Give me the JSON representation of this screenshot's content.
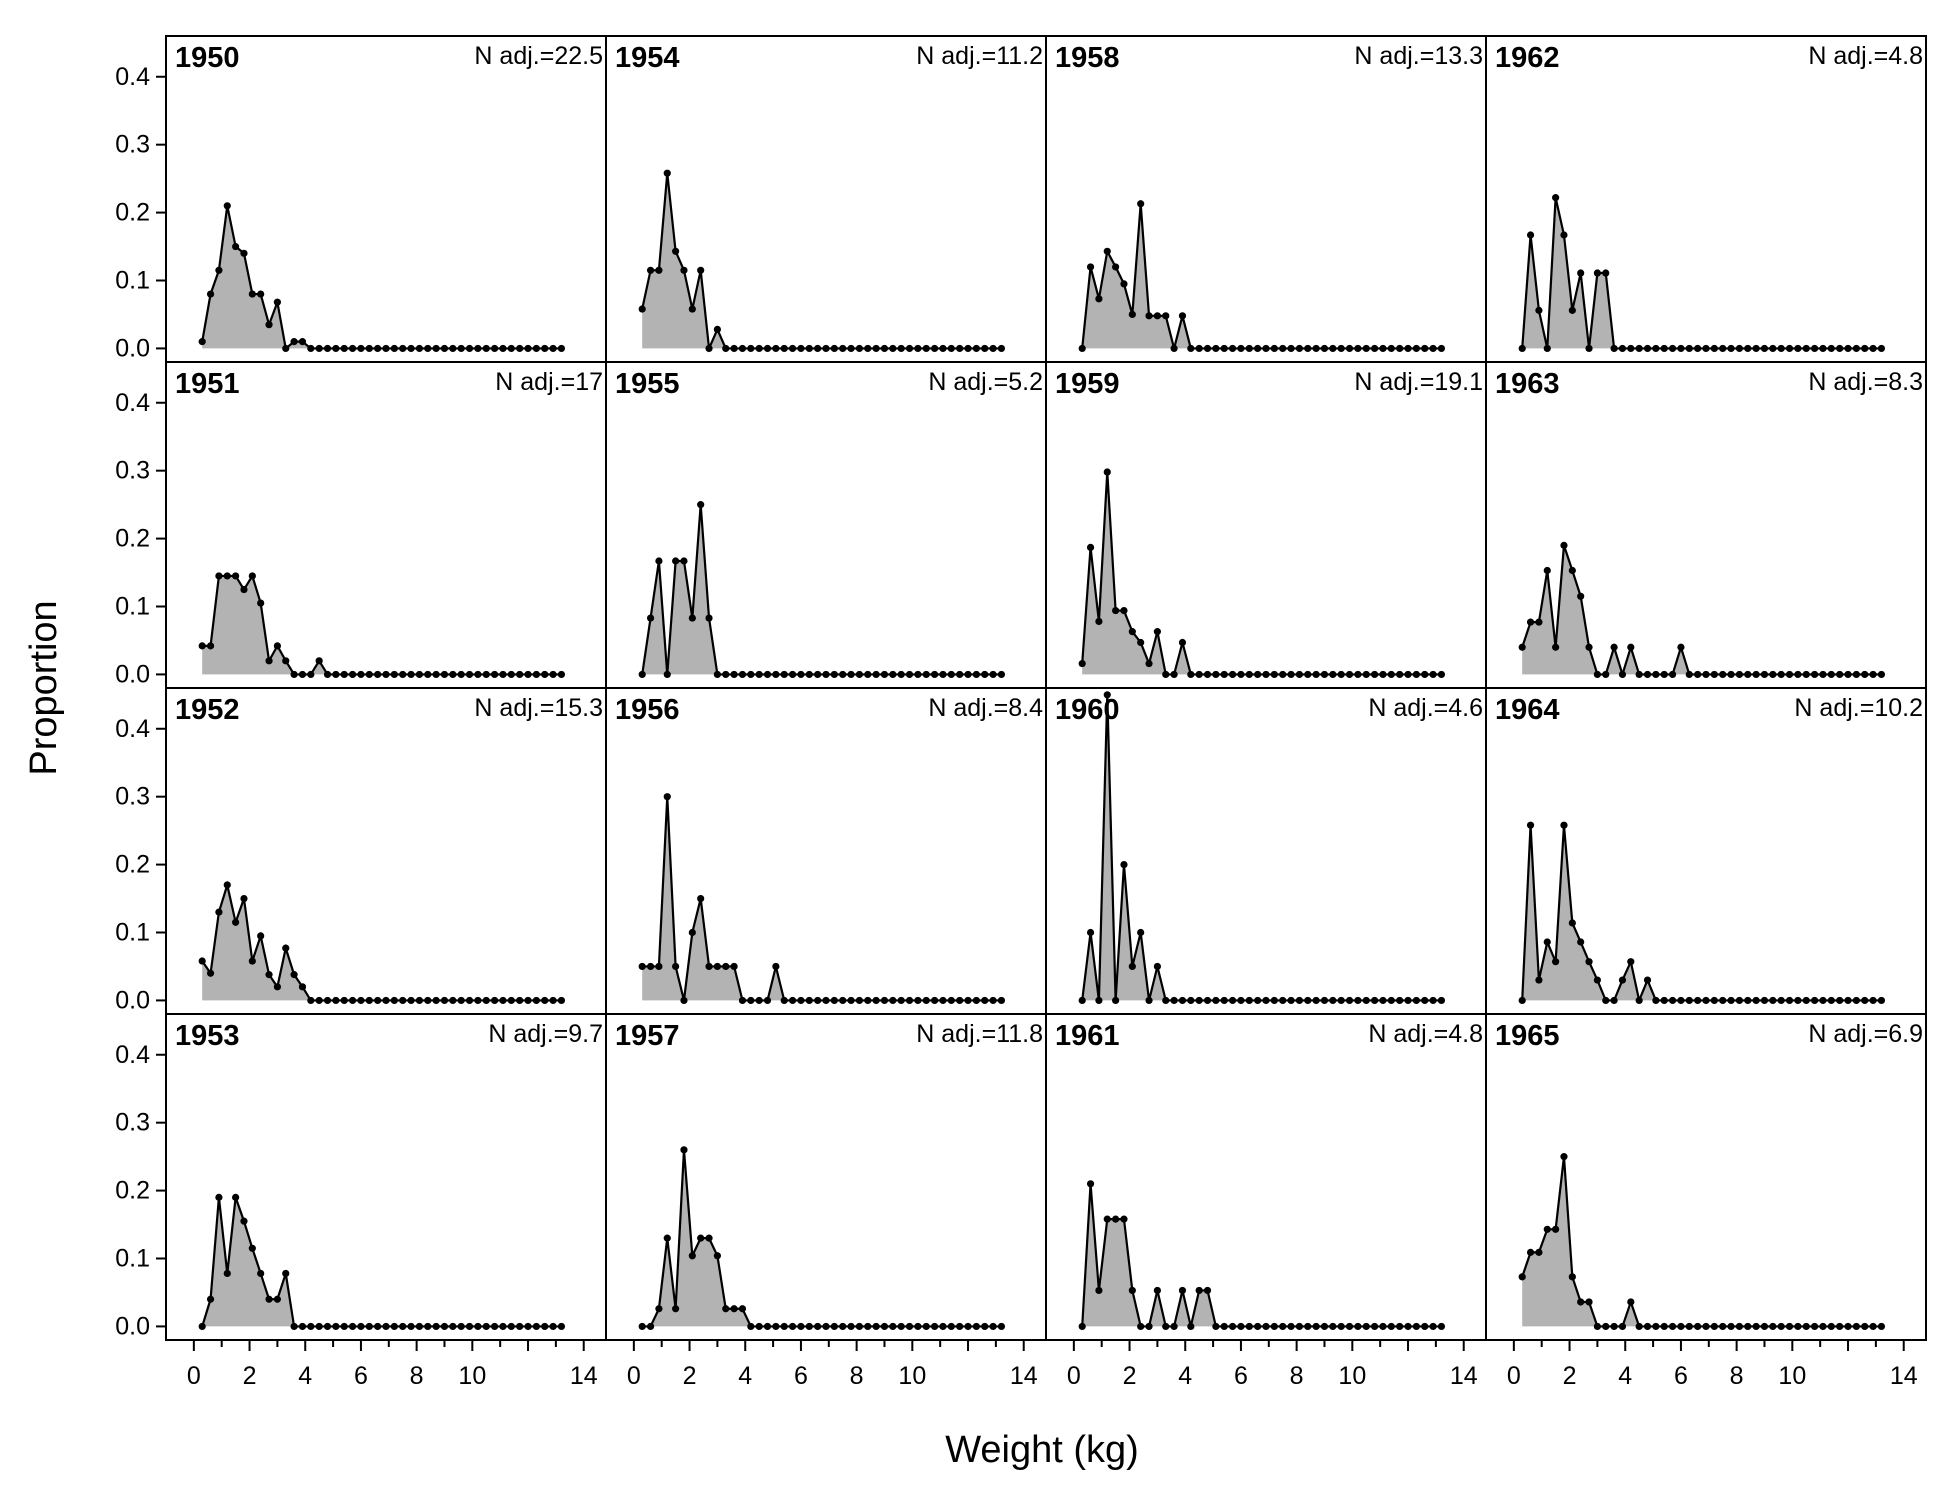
{
  "chart_data": {
    "type": "area",
    "xlabel": "Weight (kg)",
    "ylabel": "Proportion",
    "x_tick_labels": [
      "0",
      "2",
      "4",
      "6",
      "8",
      "10",
      "14"
    ],
    "x_tick_values": [
      0,
      2,
      4,
      6,
      8,
      10,
      14
    ],
    "y_tick_labels": [
      "0.0",
      "0.1",
      "0.2",
      "0.3",
      "0.4"
    ],
    "y_tick_values": [
      0,
      0.1,
      0.2,
      0.3,
      0.4
    ],
    "xlim": [
      -1,
      14.8
    ],
    "ylim": [
      -0.02,
      0.46
    ],
    "grid": false,
    "fill_color": "#b3b3b3",
    "line_color": "#000000",
    "n_prefix": "N adj.=",
    "panels": [
      {
        "year": "1950",
        "n_adj": "22.5",
        "values": [
          0.01,
          0.08,
          0.115,
          0.21,
          0.15,
          0.14,
          0.08,
          0.08,
          0.035,
          0.068,
          0,
          0.01,
          0.01,
          0,
          0,
          0,
          0,
          0,
          0,
          0,
          0,
          0,
          0,
          0,
          0,
          0,
          0,
          0,
          0,
          0,
          0,
          0,
          0,
          0,
          0,
          0,
          0,
          0,
          0,
          0,
          0,
          0,
          0,
          0
        ]
      },
      {
        "year": "1951",
        "n_adj": "17",
        "values": [
          0.042,
          0.042,
          0.145,
          0.145,
          0.145,
          0.125,
          0.145,
          0.105,
          0.02,
          0.042,
          0.02,
          0,
          0,
          0,
          0.02,
          0,
          0,
          0,
          0,
          0,
          0,
          0,
          0,
          0,
          0,
          0,
          0,
          0,
          0,
          0,
          0,
          0,
          0,
          0,
          0,
          0,
          0,
          0,
          0,
          0,
          0,
          0,
          0,
          0
        ]
      },
      {
        "year": "1952",
        "n_adj": "15.3",
        "values": [
          0.058,
          0.04,
          0.13,
          0.17,
          0.115,
          0.15,
          0.058,
          0.095,
          0.038,
          0.02,
          0.077,
          0.038,
          0.02,
          0,
          0,
          0,
          0,
          0,
          0,
          0,
          0,
          0,
          0,
          0,
          0,
          0,
          0,
          0,
          0,
          0,
          0,
          0,
          0,
          0,
          0,
          0,
          0,
          0,
          0,
          0,
          0,
          0,
          0,
          0
        ]
      },
      {
        "year": "1953",
        "n_adj": "9.7",
        "values": [
          0,
          0.04,
          0.19,
          0.078,
          0.19,
          0.155,
          0.115,
          0.078,
          0.04,
          0.04,
          0.078,
          0,
          0,
          0,
          0,
          0,
          0,
          0,
          0,
          0,
          0,
          0,
          0,
          0,
          0,
          0,
          0,
          0,
          0,
          0,
          0,
          0,
          0,
          0,
          0,
          0,
          0,
          0,
          0,
          0,
          0,
          0,
          0,
          0
        ]
      },
      {
        "year": "1954",
        "n_adj": "11.2",
        "values": [
          0.058,
          0.115,
          0.115,
          0.258,
          0.143,
          0.115,
          0.058,
          0.115,
          0,
          0.028,
          0,
          0,
          0,
          0,
          0,
          0,
          0,
          0,
          0,
          0,
          0,
          0,
          0,
          0,
          0,
          0,
          0,
          0,
          0,
          0,
          0,
          0,
          0,
          0,
          0,
          0,
          0,
          0,
          0,
          0,
          0,
          0,
          0,
          0
        ]
      },
      {
        "year": "1955",
        "n_adj": "5.2",
        "values": [
          0,
          0.083,
          0.167,
          0,
          0.167,
          0.167,
          0.083,
          0.25,
          0.083,
          0,
          0,
          0,
          0,
          0,
          0,
          0,
          0,
          0,
          0,
          0,
          0,
          0,
          0,
          0,
          0,
          0,
          0,
          0,
          0,
          0,
          0,
          0,
          0,
          0,
          0,
          0,
          0,
          0,
          0,
          0,
          0,
          0,
          0,
          0
        ]
      },
      {
        "year": "1956",
        "n_adj": "8.4",
        "values": [
          0.05,
          0.05,
          0.05,
          0.3,
          0.05,
          0,
          0.1,
          0.15,
          0.05,
          0.05,
          0.05,
          0.05,
          0,
          0,
          0,
          0,
          0.05,
          0,
          0,
          0,
          0,
          0,
          0,
          0,
          0,
          0,
          0,
          0,
          0,
          0,
          0,
          0,
          0,
          0,
          0,
          0,
          0,
          0,
          0,
          0,
          0,
          0,
          0,
          0
        ]
      },
      {
        "year": "1957",
        "n_adj": "11.8",
        "values": [
          0,
          0,
          0.026,
          0.13,
          0.026,
          0.26,
          0.104,
          0.13,
          0.13,
          0.104,
          0.026,
          0.026,
          0.026,
          0,
          0,
          0,
          0,
          0,
          0,
          0,
          0,
          0,
          0,
          0,
          0,
          0,
          0,
          0,
          0,
          0,
          0,
          0,
          0,
          0,
          0,
          0,
          0,
          0,
          0,
          0,
          0,
          0,
          0,
          0
        ]
      },
      {
        "year": "1958",
        "n_adj": "13.3",
        "values": [
          0,
          0.12,
          0.073,
          0.143,
          0.12,
          0.095,
          0.05,
          0.213,
          0.048,
          0.048,
          0.048,
          0,
          0.048,
          0,
          0,
          0,
          0,
          0,
          0,
          0,
          0,
          0,
          0,
          0,
          0,
          0,
          0,
          0,
          0,
          0,
          0,
          0,
          0,
          0,
          0,
          0,
          0,
          0,
          0,
          0,
          0,
          0,
          0,
          0
        ]
      },
      {
        "year": "1959",
        "n_adj": "19.1",
        "values": [
          0.016,
          0.187,
          0.078,
          0.298,
          0.094,
          0.094,
          0.063,
          0.047,
          0.016,
          0.063,
          0,
          0,
          0.047,
          0,
          0,
          0,
          0,
          0,
          0,
          0,
          0,
          0,
          0,
          0,
          0,
          0,
          0,
          0,
          0,
          0,
          0,
          0,
          0,
          0,
          0,
          0,
          0,
          0,
          0,
          0,
          0,
          0,
          0,
          0
        ]
      },
      {
        "year": "1960",
        "n_adj": "4.6",
        "values": [
          0,
          0.1,
          0,
          0.45,
          0,
          0.2,
          0.05,
          0.1,
          0,
          0.05,
          0,
          0,
          0,
          0,
          0,
          0,
          0,
          0,
          0,
          0,
          0,
          0,
          0,
          0,
          0,
          0,
          0,
          0,
          0,
          0,
          0,
          0,
          0,
          0,
          0,
          0,
          0,
          0,
          0,
          0,
          0,
          0,
          0,
          0
        ]
      },
      {
        "year": "1961",
        "n_adj": "4.8",
        "values": [
          0,
          0.21,
          0.053,
          0.158,
          0.158,
          0.158,
          0.053,
          0,
          0,
          0.053,
          0,
          0,
          0.053,
          0,
          0.053,
          0.053,
          0,
          0,
          0,
          0,
          0,
          0,
          0,
          0,
          0,
          0,
          0,
          0,
          0,
          0,
          0,
          0,
          0,
          0,
          0,
          0,
          0,
          0,
          0,
          0,
          0,
          0,
          0,
          0
        ]
      },
      {
        "year": "1962",
        "n_adj": "4.8",
        "values": [
          0,
          0.167,
          0.056,
          0,
          0.222,
          0.167,
          0.056,
          0.111,
          0,
          0.111,
          0.111,
          0,
          0,
          0,
          0,
          0,
          0,
          0,
          0,
          0,
          0,
          0,
          0,
          0,
          0,
          0,
          0,
          0,
          0,
          0,
          0,
          0,
          0,
          0,
          0,
          0,
          0,
          0,
          0,
          0,
          0,
          0,
          0,
          0
        ]
      },
      {
        "year": "1963",
        "n_adj": "8.3",
        "values": [
          0.04,
          0.077,
          0.077,
          0.153,
          0.04,
          0.19,
          0.153,
          0.115,
          0.04,
          0,
          0,
          0.04,
          0,
          0.04,
          0,
          0,
          0,
          0,
          0,
          0.04,
          0,
          0,
          0,
          0,
          0,
          0,
          0,
          0,
          0,
          0,
          0,
          0,
          0,
          0,
          0,
          0,
          0,
          0,
          0,
          0,
          0,
          0,
          0,
          0
        ]
      },
      {
        "year": "1964",
        "n_adj": "10.2",
        "values": [
          0,
          0.258,
          0.03,
          0.086,
          0.057,
          0.258,
          0.114,
          0.086,
          0.057,
          0.03,
          0,
          0,
          0.03,
          0.057,
          0,
          0.03,
          0,
          0,
          0,
          0,
          0,
          0,
          0,
          0,
          0,
          0,
          0,
          0,
          0,
          0,
          0,
          0,
          0,
          0,
          0,
          0,
          0,
          0,
          0,
          0,
          0,
          0,
          0,
          0
        ]
      },
      {
        "year": "1965",
        "n_adj": "6.9",
        "values": [
          0.073,
          0.109,
          0.109,
          0.143,
          0.143,
          0.25,
          0.073,
          0.036,
          0.036,
          0,
          0,
          0,
          0,
          0.036,
          0,
          0,
          0,
          0,
          0,
          0,
          0,
          0,
          0,
          0,
          0,
          0,
          0,
          0,
          0,
          0,
          0,
          0,
          0,
          0,
          0,
          0,
          0,
          0,
          0,
          0,
          0,
          0,
          0,
          0
        ]
      }
    ],
    "bin_start": 0.3,
    "bin_width": 0.3
  }
}
